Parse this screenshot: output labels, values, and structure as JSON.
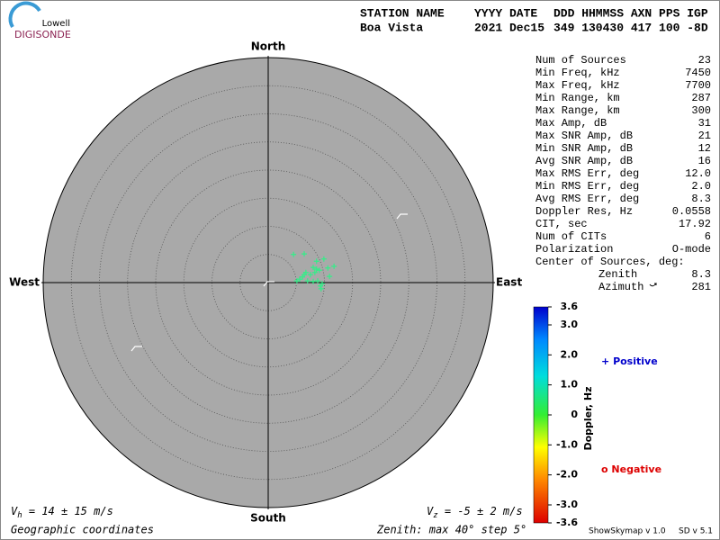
{
  "logo": {
    "top": "Lowell",
    "bottom": "DIGISONDE"
  },
  "header": {
    "columns": [
      "STATION NAME",
      "YYYY DATE",
      "DDD HHMMSS AXN PPS IGP"
    ],
    "values": [
      "Boa Vista",
      "2021 Dec15",
      "349 130430 417 100 -8D"
    ]
  },
  "stats": [
    {
      "label": "Num of Sources",
      "value": "23"
    },
    {
      "label": "Min Freq, kHz",
      "value": "7450"
    },
    {
      "label": "Max Freq, kHz",
      "value": "7700"
    },
    {
      "label": "Min Range, km",
      "value": "287"
    },
    {
      "label": "Max Range, km",
      "value": "300"
    },
    {
      "label": "Max Amp, dB",
      "value": "31"
    },
    {
      "label": "Max SNR Amp, dB",
      "value": "21"
    },
    {
      "label": "Min SNR Amp, dB",
      "value": "12"
    },
    {
      "label": "Avg SNR Amp, dB",
      "value": "16"
    },
    {
      "label": "Max RMS Err, deg",
      "value": "12.0"
    },
    {
      "label": "Min RMS Err, deg",
      "value": "2.0"
    },
    {
      "label": "Avg RMS Err, deg",
      "value": "8.3"
    },
    {
      "label": "Doppler Res, Hz",
      "value": "0.0558"
    },
    {
      "label": "CIT, sec",
      "value": "17.92"
    },
    {
      "label": "Num of CITs",
      "value": "6"
    },
    {
      "label": "Polarization",
      "value": "O-mode"
    }
  ],
  "center": {
    "title": "Center of Sources, deg:",
    "rows": [
      {
        "label": "Zenith",
        "value": "8.3"
      },
      {
        "label": "Azimuth",
        "value": "281"
      }
    ]
  },
  "chart_data": {
    "type": "skymap",
    "directions": {
      "north": "North",
      "east": "East",
      "south": "South",
      "west": "West"
    },
    "xlim": [
      -40,
      40
    ],
    "ylim": [
      -40,
      40
    ],
    "rticks": [
      5,
      10,
      15,
      20,
      25,
      30,
      35,
      40
    ],
    "series": [
      {
        "color": "#33ee88",
        "x": [
          4.5,
          6.4,
          8.6,
          9.9,
          11.7,
          9.1,
          8.3,
          7.5,
          6.4,
          5.6,
          6.1,
          7.0,
          8.0,
          8.8,
          9.6,
          9.3,
          9.4,
          10.9,
          10.6,
          8.0,
          8.6,
          6.7,
          5.1
        ],
        "values": [
          5.0,
          5.1,
          3.8,
          4.2,
          2.9,
          2.2,
          1.8,
          1.4,
          1.4,
          0.6,
          1.0,
          0.3,
          0.2,
          0.3,
          -0.2,
          -0.6,
          -1.1,
          1.1,
          2.6,
          2.7,
          2.4,
          1.8,
          0.3
        ]
      }
    ],
    "colorbar": {
      "label": "Doppler, Hz",
      "lim": [
        -3.6,
        3.6
      ],
      "ticks": [
        3.6,
        {
          "value": 3,
          "label": "3.0"
        },
        {
          "value": 2,
          "label": "2.0"
        },
        {
          "value": 1,
          "label": "1.0"
        },
        0,
        {
          "value": -1,
          "label": "-1.0"
        },
        {
          "value": -2,
          "label": "-2.0"
        },
        {
          "value": -3,
          "label": "-3.0"
        },
        -3.6
      ]
    },
    "legend": {
      "positive": {
        "symbol": "+",
        "text": "Positive",
        "color": "#0000cc"
      },
      "negative": {
        "symbol": "o",
        "text": "Negative",
        "color": "#dd0000"
      }
    }
  },
  "footer": {
    "vh": {
      "symbol": "V",
      "sub": "h",
      "text": " = 14 ± 15 m/s"
    },
    "vz": {
      "symbol": "V",
      "sub": "z",
      "text": " = -5 ± 2 m/s"
    },
    "coords": "Geographic coordinates",
    "zenith": "Zenith: max 40°  step 5°",
    "version": "ShowSkymap v 1.0",
    "sd": "SD v 5.1"
  }
}
